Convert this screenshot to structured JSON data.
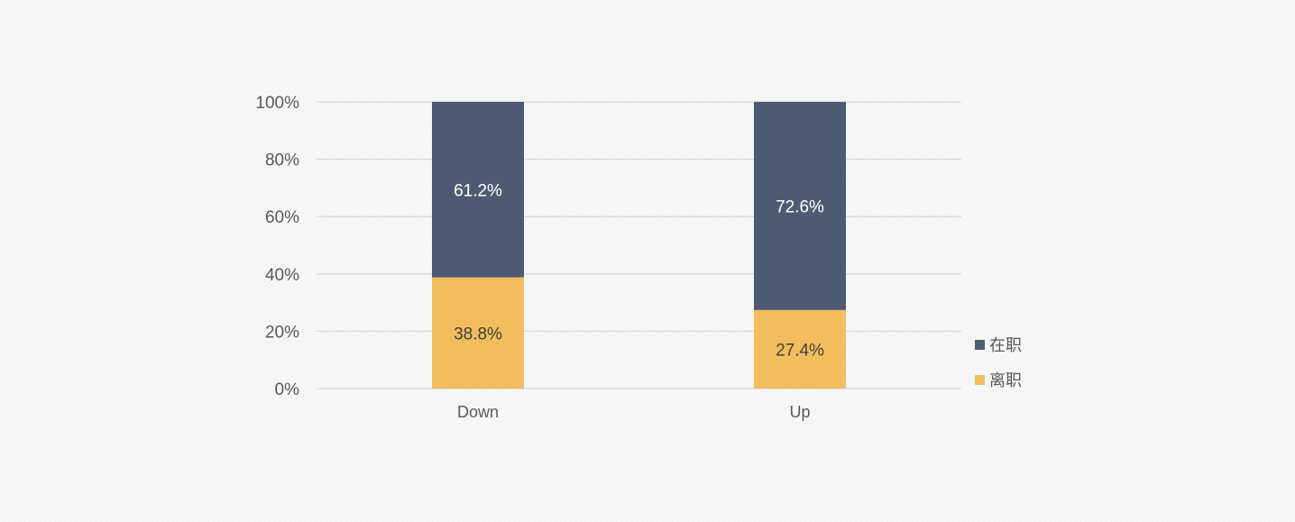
{
  "chart_data": {
    "type": "bar",
    "stacked": true,
    "percent_stacked": true,
    "categories": [
      "Down",
      "Up"
    ],
    "series": [
      {
        "name": "离职",
        "values": [
          38.8,
          27.4
        ],
        "labels": [
          "38.8%",
          "27.4%"
        ],
        "color": "#f2bd5c",
        "label_color": "#404040"
      },
      {
        "name": "在职",
        "values": [
          61.2,
          72.6
        ],
        "labels": [
          "61.2%",
          "72.6%"
        ],
        "color": "#4d5b72",
        "label_color": "#ffffff"
      }
    ],
    "ylim": [
      0,
      100
    ],
    "yticks": [
      "0%",
      "20%",
      "40%",
      "60%",
      "80%",
      "100%"
    ],
    "grid": true,
    "gridline_color": "#d9d9d9",
    "legend_position": "right",
    "legend_order": [
      "在职",
      "离职"
    ],
    "title": "",
    "xlabel": "",
    "ylabel": ""
  }
}
